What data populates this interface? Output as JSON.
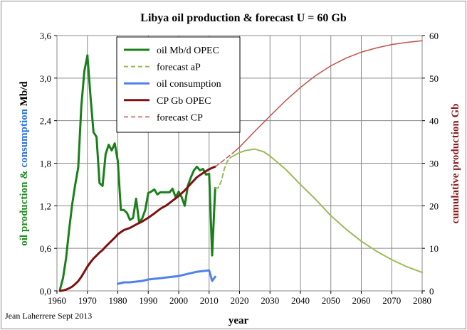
{
  "chart_data": {
    "type": "line",
    "title": "Libya oil production & forecast U = 60 Gb",
    "xlabel": "year",
    "ylabel_left_parts": [
      {
        "text": "oil production",
        "color": "#1f8a1f"
      },
      {
        "text": " & ",
        "color": "#1f8a1f"
      },
      {
        "text": "consumption",
        "color": "#2d6fe0"
      },
      {
        "text": " Mb/d",
        "color": "#000000"
      }
    ],
    "ylabel_right": "cumulative production Gb",
    "credit": "Jean Laherrere Sept 2013",
    "xlim": [
      1960,
      2080
    ],
    "ylim_left": [
      0,
      3.6
    ],
    "ylim_right": [
      0,
      60
    ],
    "x_ticks": [
      "1960",
      "1970",
      "1980",
      "1990",
      "2000",
      "2010",
      "2020",
      "2030",
      "2040",
      "2050",
      "2060",
      "2070",
      "2080"
    ],
    "y_left_ticks": [
      "0,0",
      "0,6",
      "1,2",
      "1,8",
      "2,4",
      "3,0",
      "3,6"
    ],
    "y_right_ticks": [
      "0",
      "10",
      "20",
      "30",
      "40",
      "50",
      "60"
    ],
    "grid": true,
    "legend_position": "top-left",
    "series": [
      {
        "name": "oil Mb/d OPEC",
        "axis": "left",
        "color": "#1a7f1a",
        "dashed": false,
        "width": 3,
        "points": [
          [
            1961,
            0.02
          ],
          [
            1962,
            0.18
          ],
          [
            1963,
            0.46
          ],
          [
            1964,
            0.86
          ],
          [
            1965,
            1.22
          ],
          [
            1966,
            1.5
          ],
          [
            1967,
            1.74
          ],
          [
            1968,
            2.6
          ],
          [
            1969,
            3.1
          ],
          [
            1970,
            3.32
          ],
          [
            1971,
            2.76
          ],
          [
            1972,
            2.24
          ],
          [
            1973,
            2.17
          ],
          [
            1974,
            1.52
          ],
          [
            1975,
            1.48
          ],
          [
            1976,
            1.93
          ],
          [
            1977,
            2.06
          ],
          [
            1978,
            1.98
          ],
          [
            1979,
            2.08
          ],
          [
            1980,
            1.83
          ],
          [
            1981,
            1.14
          ],
          [
            1982,
            1.14
          ],
          [
            1983,
            1.1
          ],
          [
            1984,
            1.0
          ],
          [
            1985,
            1.03
          ],
          [
            1986,
            1.3
          ],
          [
            1987,
            0.97
          ],
          [
            1988,
            1.02
          ],
          [
            1989,
            1.14
          ],
          [
            1990,
            1.38
          ],
          [
            1991,
            1.4
          ],
          [
            1992,
            1.43
          ],
          [
            1993,
            1.36
          ],
          [
            1994,
            1.39
          ],
          [
            1995,
            1.39
          ],
          [
            1996,
            1.39
          ],
          [
            1997,
            1.39
          ],
          [
            1998,
            1.44
          ],
          [
            1999,
            1.32
          ],
          [
            2000,
            1.4
          ],
          [
            2001,
            1.32
          ],
          [
            2002,
            1.2
          ],
          [
            2003,
            1.48
          ],
          [
            2004,
            1.6
          ],
          [
            2005,
            1.7
          ],
          [
            2006,
            1.75
          ],
          [
            2007,
            1.7
          ],
          [
            2008,
            1.72
          ],
          [
            2009,
            1.64
          ],
          [
            2010,
            1.65
          ],
          [
            2011,
            0.5
          ],
          [
            2012,
            1.45
          ]
        ]
      },
      {
        "name": "forecast aP",
        "axis": "left",
        "color": "#9bbb59",
        "dashed": true,
        "width": 2,
        "points": [
          [
            2012,
            1.45
          ],
          [
            2013,
            1.45
          ],
          [
            2014,
            1.55
          ],
          [
            2015,
            1.72
          ],
          [
            2016,
            1.83
          ],
          [
            2017,
            1.88
          ]
        ]
      },
      {
        "name": "",
        "axis": "left",
        "color": "#9bbb59",
        "dashed": false,
        "width": 2,
        "points": [
          [
            2017,
            1.88
          ],
          [
            2020,
            1.95
          ],
          [
            2022,
            1.98
          ],
          [
            2025,
            2.0
          ],
          [
            2028,
            1.96
          ],
          [
            2030,
            1.9
          ],
          [
            2035,
            1.72
          ],
          [
            2040,
            1.5
          ],
          [
            2045,
            1.29
          ],
          [
            2050,
            1.06
          ],
          [
            2055,
            0.87
          ],
          [
            2060,
            0.7
          ],
          [
            2065,
            0.56
          ],
          [
            2070,
            0.44
          ],
          [
            2075,
            0.34
          ],
          [
            2080,
            0.26
          ]
        ]
      },
      {
        "name": "oil consumption",
        "axis": "left",
        "color": "#4f81e8",
        "dashed": false,
        "width": 3,
        "points": [
          [
            1980,
            0.1
          ],
          [
            1981,
            0.11
          ],
          [
            1982,
            0.12
          ],
          [
            1984,
            0.12
          ],
          [
            1986,
            0.13
          ],
          [
            1988,
            0.14
          ],
          [
            1990,
            0.16
          ],
          [
            1992,
            0.17
          ],
          [
            1994,
            0.18
          ],
          [
            1996,
            0.19
          ],
          [
            1998,
            0.2
          ],
          [
            2000,
            0.21
          ],
          [
            2002,
            0.23
          ],
          [
            2004,
            0.25
          ],
          [
            2006,
            0.27
          ],
          [
            2008,
            0.28
          ],
          [
            2010,
            0.29
          ],
          [
            2011,
            0.14
          ],
          [
            2012,
            0.2
          ]
        ]
      },
      {
        "name": "CP Gb OPEC",
        "axis": "right",
        "color": "#7f1010",
        "dashed": false,
        "width": 3,
        "points": [
          [
            1961,
            0.0
          ],
          [
            1962,
            0.1
          ],
          [
            1963,
            0.3
          ],
          [
            1964,
            0.6
          ],
          [
            1965,
            1.0
          ],
          [
            1966,
            1.6
          ],
          [
            1967,
            2.3
          ],
          [
            1968,
            3.3
          ],
          [
            1969,
            4.5
          ],
          [
            1970,
            5.7
          ],
          [
            1971,
            6.7
          ],
          [
            1972,
            7.6
          ],
          [
            1973,
            8.3
          ],
          [
            1974,
            9.0
          ],
          [
            1975,
            9.6
          ],
          [
            1976,
            10.4
          ],
          [
            1977,
            11.1
          ],
          [
            1978,
            11.8
          ],
          [
            1979,
            12.5
          ],
          [
            1980,
            13.3
          ],
          [
            1982,
            14.3
          ],
          [
            1984,
            14.8
          ],
          [
            1986,
            15.6
          ],
          [
            1988,
            16.3
          ],
          [
            1990,
            17.2
          ],
          [
            1992,
            18.2
          ],
          [
            1994,
            19.3
          ],
          [
            1996,
            20.1
          ],
          [
            1998,
            21.2
          ],
          [
            2000,
            22.3
          ],
          [
            2002,
            23.6
          ],
          [
            2004,
            25.2
          ],
          [
            2006,
            26.7
          ],
          [
            2008,
            27.7
          ],
          [
            2010,
            28.6
          ],
          [
            2012,
            29.2
          ]
        ]
      },
      {
        "name": "forecast CP",
        "axis": "right",
        "color": "#c0504d",
        "dashed": true,
        "width": 1.5,
        "points": [
          [
            2012,
            29.2
          ],
          [
            2015,
            30.8
          ],
          [
            2018,
            32.5
          ]
        ]
      },
      {
        "name": "",
        "axis": "right",
        "color": "#c0504d",
        "dashed": false,
        "width": 1.5,
        "points": [
          [
            2018,
            32.5
          ],
          [
            2020,
            33.8
          ],
          [
            2025,
            37.5
          ],
          [
            2030,
            41.1
          ],
          [
            2035,
            44.6
          ],
          [
            2040,
            47.8
          ],
          [
            2045,
            50.6
          ],
          [
            2050,
            52.9
          ],
          [
            2055,
            54.7
          ],
          [
            2060,
            56.1
          ],
          [
            2065,
            57.1
          ],
          [
            2070,
            57.9
          ],
          [
            2075,
            58.4
          ],
          [
            2080,
            58.8
          ]
        ]
      }
    ]
  }
}
